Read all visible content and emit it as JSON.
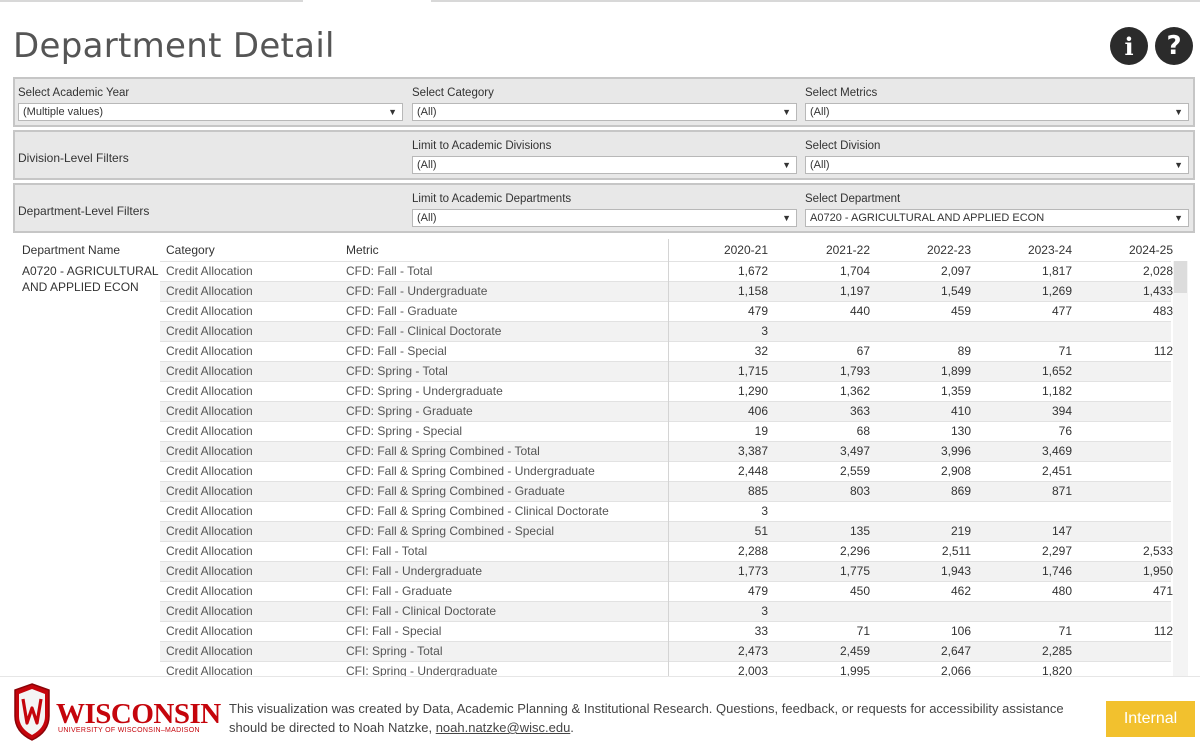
{
  "header": {
    "title": "Department Detail",
    "info_icon": "i",
    "help_icon": "?"
  },
  "filters": {
    "academic_year": {
      "label": "Select Academic Year",
      "value": "(Multiple values)"
    },
    "category": {
      "label": "Select Category",
      "value": "(All)"
    },
    "metrics": {
      "label": "Select Metrics",
      "value": "(All)"
    },
    "division_band_title": "Division-Level Filters",
    "limit_divisions": {
      "label": "Limit to Academic Divisions",
      "value": "(All)"
    },
    "division": {
      "label": "Select Division",
      "value": "(All)"
    },
    "department_band_title": "Department-Level Filters",
    "limit_departments": {
      "label": "Limit to Academic Departments",
      "value": "(All)"
    },
    "department": {
      "label": "Select Department",
      "value": "A0720 - AGRICULTURAL AND APPLIED ECON"
    }
  },
  "table": {
    "headers": {
      "department": "Department Name",
      "category": "Category",
      "metric": "Metric",
      "years": [
        "2020-21",
        "2021-22",
        "2022-23",
        "2023-24",
        "2024-25"
      ]
    },
    "department_name_line1": "A0720 - AGRICULTURAL",
    "department_name_line2": "AND APPLIED ECON",
    "rows": [
      {
        "category": "Credit Allocation",
        "metric": "CFD: Fall - Total",
        "values": [
          "1,672",
          "1,704",
          "2,097",
          "1,817",
          "2,028"
        ]
      },
      {
        "category": "Credit Allocation",
        "metric": "CFD: Fall - Undergraduate",
        "values": [
          "1,158",
          "1,197",
          "1,549",
          "1,269",
          "1,433"
        ]
      },
      {
        "category": "Credit Allocation",
        "metric": "CFD: Fall - Graduate",
        "values": [
          "479",
          "440",
          "459",
          "477",
          "483"
        ]
      },
      {
        "category": "Credit Allocation",
        "metric": "CFD: Fall - Clinical Doctorate",
        "values": [
          "3",
          "",
          "",
          "",
          ""
        ]
      },
      {
        "category": "Credit Allocation",
        "metric": "CFD: Fall - Special",
        "values": [
          "32",
          "67",
          "89",
          "71",
          "112"
        ]
      },
      {
        "category": "Credit Allocation",
        "metric": "CFD: Spring - Total",
        "values": [
          "1,715",
          "1,793",
          "1,899",
          "1,652",
          ""
        ]
      },
      {
        "category": "Credit Allocation",
        "metric": "CFD: Spring - Undergraduate",
        "values": [
          "1,290",
          "1,362",
          "1,359",
          "1,182",
          ""
        ]
      },
      {
        "category": "Credit Allocation",
        "metric": "CFD: Spring - Graduate",
        "values": [
          "406",
          "363",
          "410",
          "394",
          ""
        ]
      },
      {
        "category": "Credit Allocation",
        "metric": "CFD: Spring - Special",
        "values": [
          "19",
          "68",
          "130",
          "76",
          ""
        ]
      },
      {
        "category": "Credit Allocation",
        "metric": "CFD: Fall & Spring Combined - Total",
        "values": [
          "3,387",
          "3,497",
          "3,996",
          "3,469",
          ""
        ]
      },
      {
        "category": "Credit Allocation",
        "metric": "CFD: Fall & Spring Combined - Undergraduate",
        "values": [
          "2,448",
          "2,559",
          "2,908",
          "2,451",
          ""
        ]
      },
      {
        "category": "Credit Allocation",
        "metric": "CFD: Fall & Spring Combined - Graduate",
        "values": [
          "885",
          "803",
          "869",
          "871",
          ""
        ]
      },
      {
        "category": "Credit Allocation",
        "metric": "CFD: Fall & Spring Combined - Clinical Doctorate",
        "values": [
          "3",
          "",
          "",
          "",
          ""
        ]
      },
      {
        "category": "Credit Allocation",
        "metric": "CFD: Fall & Spring Combined - Special",
        "values": [
          "51",
          "135",
          "219",
          "147",
          ""
        ]
      },
      {
        "category": "Credit Allocation",
        "metric": "CFI: Fall - Total",
        "values": [
          "2,288",
          "2,296",
          "2,511",
          "2,297",
          "2,533"
        ]
      },
      {
        "category": "Credit Allocation",
        "metric": "CFI: Fall - Undergraduate",
        "values": [
          "1,773",
          "1,775",
          "1,943",
          "1,746",
          "1,950"
        ]
      },
      {
        "category": "Credit Allocation",
        "metric": "CFI: Fall - Graduate",
        "values": [
          "479",
          "450",
          "462",
          "480",
          "471"
        ]
      },
      {
        "category": "Credit Allocation",
        "metric": "CFI: Fall - Clinical Doctorate",
        "values": [
          "3",
          "",
          "",
          "",
          ""
        ]
      },
      {
        "category": "Credit Allocation",
        "metric": "CFI: Fall - Special",
        "values": [
          "33",
          "71",
          "106",
          "71",
          "112"
        ]
      },
      {
        "category": "Credit Allocation",
        "metric": "CFI: Spring - Total",
        "values": [
          "2,473",
          "2,459",
          "2,647",
          "2,285",
          ""
        ]
      },
      {
        "category": "Credit Allocation",
        "metric": "CFI: Spring - Undergraduate",
        "values": [
          "2,003",
          "1,995",
          "2,066",
          "1,820",
          ""
        ]
      }
    ]
  },
  "footer": {
    "logo_word": "WISCONSIN",
    "logo_sub": "UNIVERSITY OF WISCONSIN–MADISON",
    "text_part1": "This visualization was created by Data, Academic Planning & Institutional Research. Questions, feedback, or requests for accessibility assistance should be directed to Noah Natzke, ",
    "email": "noah.natzke@wisc.edu",
    "text_part2": ".",
    "badge": "Internal"
  },
  "colors": {
    "brand_red": "#c5050c",
    "badge_yellow": "#f2c12e"
  }
}
